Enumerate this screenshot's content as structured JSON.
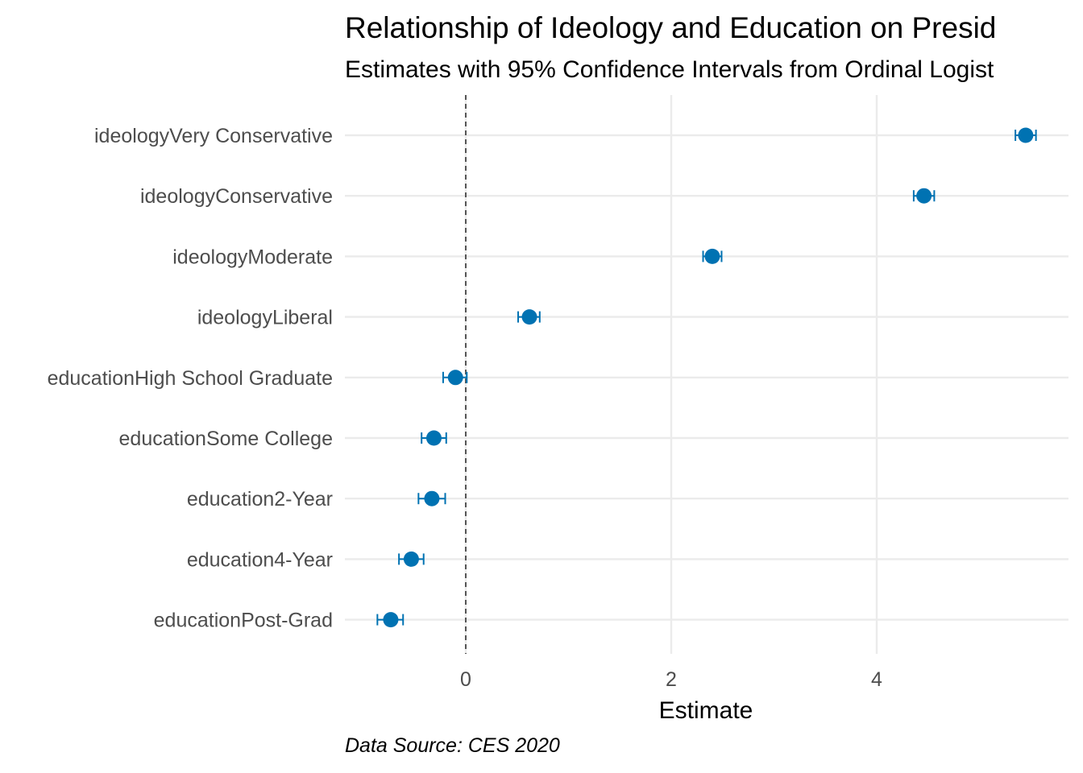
{
  "chart_data": {
    "type": "scatter",
    "title": "Relationship of Ideology and Education on Presid",
    "subtitle": "Estimates with 95% Confidence Intervals from Ordinal Logist",
    "caption": "Data Source: CES 2020",
    "xlabel": "Estimate",
    "ylabel": "",
    "xlim": [
      -1.0,
      5.85
    ],
    "x_ticks": [
      0,
      2,
      4
    ],
    "reference_line": 0,
    "grid": true,
    "point_color": "#0072B2",
    "ref_line_color": "#555555",
    "terms": [
      {
        "label": "ideologyVery Conservative",
        "estimate": 5.45,
        "lower": 5.35,
        "upper": 5.55
      },
      {
        "label": "ideologyConservative",
        "estimate": 4.46,
        "lower": 4.36,
        "upper": 4.56
      },
      {
        "label": "ideologyModerate",
        "estimate": 2.4,
        "lower": 2.31,
        "upper": 2.49
      },
      {
        "label": "ideologyLiberal",
        "estimate": 0.62,
        "lower": 0.51,
        "upper": 0.72
      },
      {
        "label": "educationHigh School Graduate",
        "estimate": -0.1,
        "lower": -0.22,
        "upper": 0.01
      },
      {
        "label": "educationSome College",
        "estimate": -0.31,
        "lower": -0.43,
        "upper": -0.19
      },
      {
        "label": "education2-Year",
        "estimate": -0.33,
        "lower": -0.46,
        "upper": -0.2
      },
      {
        "label": "education4-Year",
        "estimate": -0.53,
        "lower": -0.65,
        "upper": -0.41
      },
      {
        "label": "educationPost-Grad",
        "estimate": -0.73,
        "lower": -0.86,
        "upper": -0.61
      }
    ]
  }
}
